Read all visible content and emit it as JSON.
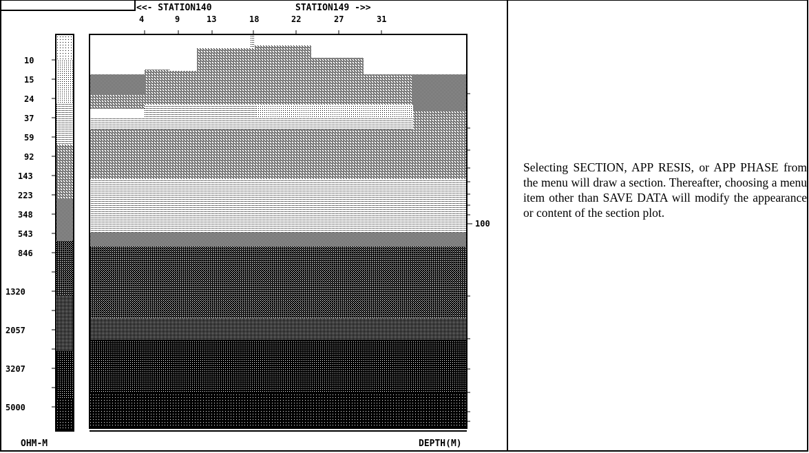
{
  "section": {
    "stations": {
      "left_label": "<<- STATION140",
      "right_label": "STATION149 ->>",
      "ticks": [
        "4",
        "9",
        "13",
        "18",
        "22",
        "27",
        "31"
      ]
    },
    "scale_labels": [
      "10",
      "15",
      "24",
      "37",
      "59",
      "92",
      "143",
      "223",
      "348",
      "543",
      "846",
      "1320",
      "2057",
      "3207",
      "5000"
    ],
    "units_label": "OHM-M",
    "depth_label": "DEPTH(M)",
    "depth_marker": "100"
  },
  "description": "Selecting SECTION, APP RESIS, or APP PHASE from the menu will draw a section.  Thereafter, choosing a menu item other than SAVE DATA will modify the appearance or content of the section plot.",
  "colors": {
    "ink": "#000000",
    "paper": "#ffffff"
  }
}
